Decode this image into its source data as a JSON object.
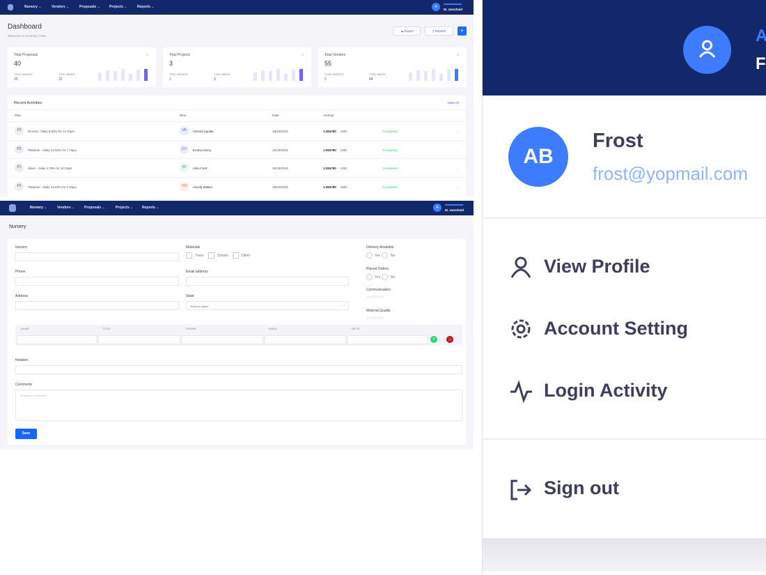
{
  "nav": {
    "items": [
      "Nursery",
      "Vendors",
      "Proposals",
      "Projects",
      "Reports"
    ],
    "user_initial": "A",
    "user_name": "M. Jamshaid"
  },
  "dashboard": {
    "title": "Dashboard",
    "subtitle": "Welcome to Coventry CRM.",
    "export_label": "Export",
    "reports_label": "Reports",
    "add_label": "+",
    "stats": [
      {
        "title": "Total Proposals",
        "value": "40",
        "month_label": "THIS MONTH",
        "month": "20",
        "week_label": "THIS WEEK",
        "week": "22",
        "accent": "#6c63ff",
        "bars": [
          0.7,
          0.9,
          0.85,
          1,
          0.6,
          0.95,
          1
        ]
      },
      {
        "title": "Total Projects",
        "value": "3",
        "month_label": "THIS MONTH",
        "month": "1",
        "week_label": "THIS WEEK",
        "week": "3",
        "accent": "#6c63ff",
        "bars": [
          0.7,
          0.9,
          0.85,
          1,
          0.6,
          0.95,
          1
        ]
      },
      {
        "title": "Total Vendors",
        "value": "55",
        "month_label": "THIS MONTH",
        "month": "2",
        "week_label": "THIS WEEK",
        "week": "44",
        "accent": "#3d7bff",
        "bars": [
          0.7,
          0.9,
          0.85,
          1,
          0.6,
          0.95,
          1
        ]
      }
    ],
    "activities": {
      "title": "Recent Activities",
      "view_all": "View All",
      "columns": [
        "Plan",
        "Who",
        "Date",
        "Amount"
      ],
      "rows": [
        {
          "badge": "P2",
          "plan": "Dmond - Daily 5.53% for 14 Days",
          "who_initials": "VA",
          "who": "Victoria Aguilar",
          "date": "18/10/2019",
          "amount": "1.094780",
          "currency": "USD",
          "status": "Completed"
        },
        {
          "badge": "P3",
          "plan": "Platinum - Daily 14.82% for 7 Days",
          "who_initials": "EH",
          "who": "Emma Henry",
          "date": "18/10/2019",
          "amount": "1.094780",
          "currency": "USD",
          "status": "Completed"
        },
        {
          "badge": "P1",
          "plan": "Silver - Daily 4.75% for 21 Days",
          "who_initials": "AF",
          "who": "Alice Ford",
          "date": "18/10/2019",
          "amount": "1.094780",
          "currency": "USD",
          "status": "Completed"
        },
        {
          "badge": "P3",
          "plan": "Platinum - Daily 14.82% for 7 Days",
          "who_initials": "HW",
          "who": "Harold Walker",
          "date": "18/10/2019",
          "amount": "1.094780",
          "currency": "USD",
          "status": "Completed"
        }
      ]
    }
  },
  "nursery_form": {
    "title": "Nursery",
    "nursery_label": "Nursery",
    "phone_label": "Phone",
    "address_label": "Address",
    "materials_label": "Materials",
    "materials": [
      "Trees",
      "Shrubs",
      "Other"
    ],
    "email_label": "Email address",
    "state_label": "State",
    "state_placeholder": "Select a option",
    "delivery_label": "Delivery Available",
    "placed_label": "Placed Orders",
    "yes": "Yes",
    "no": "No",
    "communication_label": "Communication",
    "quality_label": "Material Quality",
    "stars": "☆☆☆☆☆",
    "contact_columns": [
      "NAME",
      "TITLE",
      "PHONE",
      "EMAIL",
      "NOTE"
    ],
    "notation_label": "Notation",
    "comments_label": "Comments",
    "comments_placeholder": "Whatever Comments",
    "save_label": "Save"
  },
  "profile_menu": {
    "header_partial_a": "A",
    "header_partial_f": "F",
    "avatar_initials": "AB",
    "name": "Frost",
    "email": "frost@yopmail.com",
    "items": [
      "View Profile",
      "Account Setting",
      "Login Activity"
    ],
    "sign_out": "Sign out"
  }
}
